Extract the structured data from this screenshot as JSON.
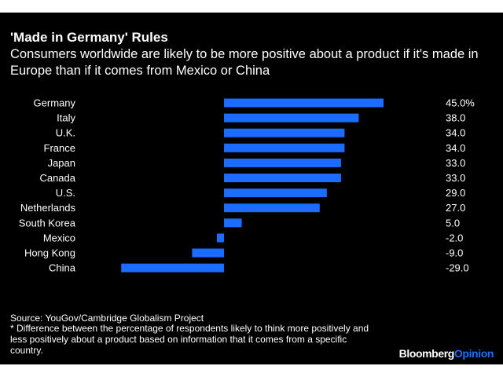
{
  "title": "'Made in Germany' Rules",
  "subtitle": "Consumers worldwide are likely to be more positive about a product if it's made in Europe than if it comes from Mexico or China",
  "source": "Source: YouGov/Cambridge Globalism Project",
  "footnote": "* Difference between the percentage of respondents likely to think more positively and less positively about a product based on information that it comes from a specific country.",
  "brand": {
    "part1": "Bloomberg",
    "part2": "Opinion"
  },
  "colors": {
    "background": "#000000",
    "bar": "#1a6dff",
    "text": "#ffffff"
  },
  "chart_data": {
    "type": "bar",
    "orientation": "horizontal",
    "categories": [
      "Germany",
      "Italy",
      "U.K.",
      "France",
      "Japan",
      "Canada",
      "U.S.",
      "Netherlands",
      "South Korea",
      "Mexico",
      "Hong Kong",
      "China"
    ],
    "values": [
      45.0,
      38.0,
      34.0,
      34.0,
      33.0,
      33.0,
      29.0,
      27.0,
      5.0,
      -2.0,
      -9.0,
      -29.0
    ],
    "value_labels": [
      "45.0%",
      "38.0",
      "34.0",
      "34.0",
      "33.0",
      "33.0",
      "29.0",
      "27.0",
      "5.0",
      "-2.0",
      "-9.0",
      "-29.0"
    ],
    "xlim": [
      -29,
      45
    ],
    "grid": false,
    "legend": false
  }
}
